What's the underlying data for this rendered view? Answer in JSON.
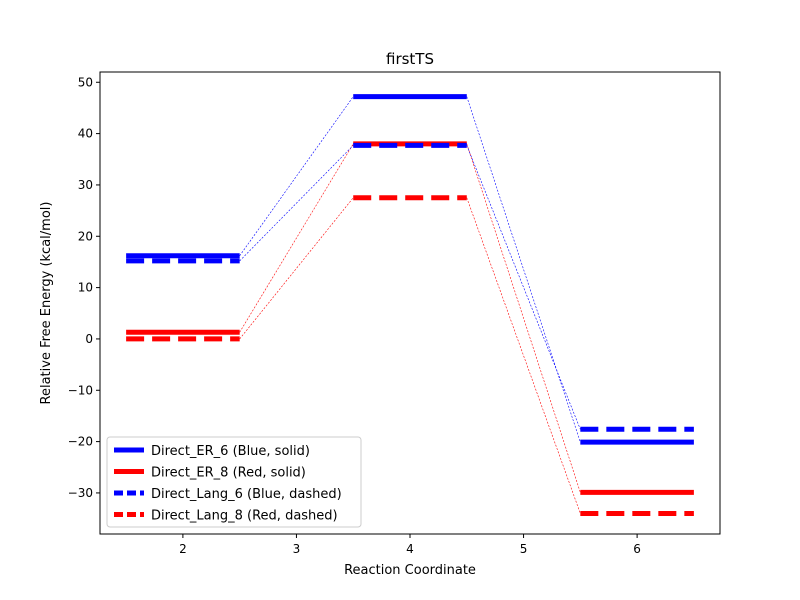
{
  "chart_data": {
    "type": "line",
    "title": "firstTS",
    "xlabel": "Reaction Coordinate",
    "ylabel": "Relative Free Energy (kcal/mol)",
    "xlim": [
      1.27,
      6.73
    ],
    "ylim": [
      -38,
      52
    ],
    "xticks": [
      2,
      3,
      4,
      5,
      6
    ],
    "yticks": [
      -30,
      -20,
      -10,
      0,
      10,
      20,
      30,
      40,
      50
    ],
    "level_half_width": 0.5,
    "series": [
      {
        "name": "Direct_ER_6 (Blue, solid)",
        "color": "#0000ff",
        "dash": "solid",
        "x": [
          2,
          4,
          6
        ],
        "y": [
          16.2,
          47.2,
          -20.1
        ]
      },
      {
        "name": "Direct_ER_8 (Red, solid)",
        "color": "#ff0000",
        "dash": "solid",
        "x": [
          2,
          4,
          6
        ],
        "y": [
          1.3,
          38.0,
          -29.9
        ]
      },
      {
        "name": "Direct_Lang_6 (Blue, dashed)",
        "color": "#0000ff",
        "dash": "dashed",
        "x": [
          2,
          4,
          6
        ],
        "y": [
          15.2,
          37.7,
          -17.6
        ]
      },
      {
        "name": "Direct_Lang_8 (Red, dashed)",
        "color": "#ff0000",
        "dash": "dashed",
        "x": [
          2,
          4,
          6
        ],
        "y": [
          0.0,
          27.5,
          -34.0
        ]
      }
    ],
    "legend_position": "lower-left",
    "grid": false
  }
}
